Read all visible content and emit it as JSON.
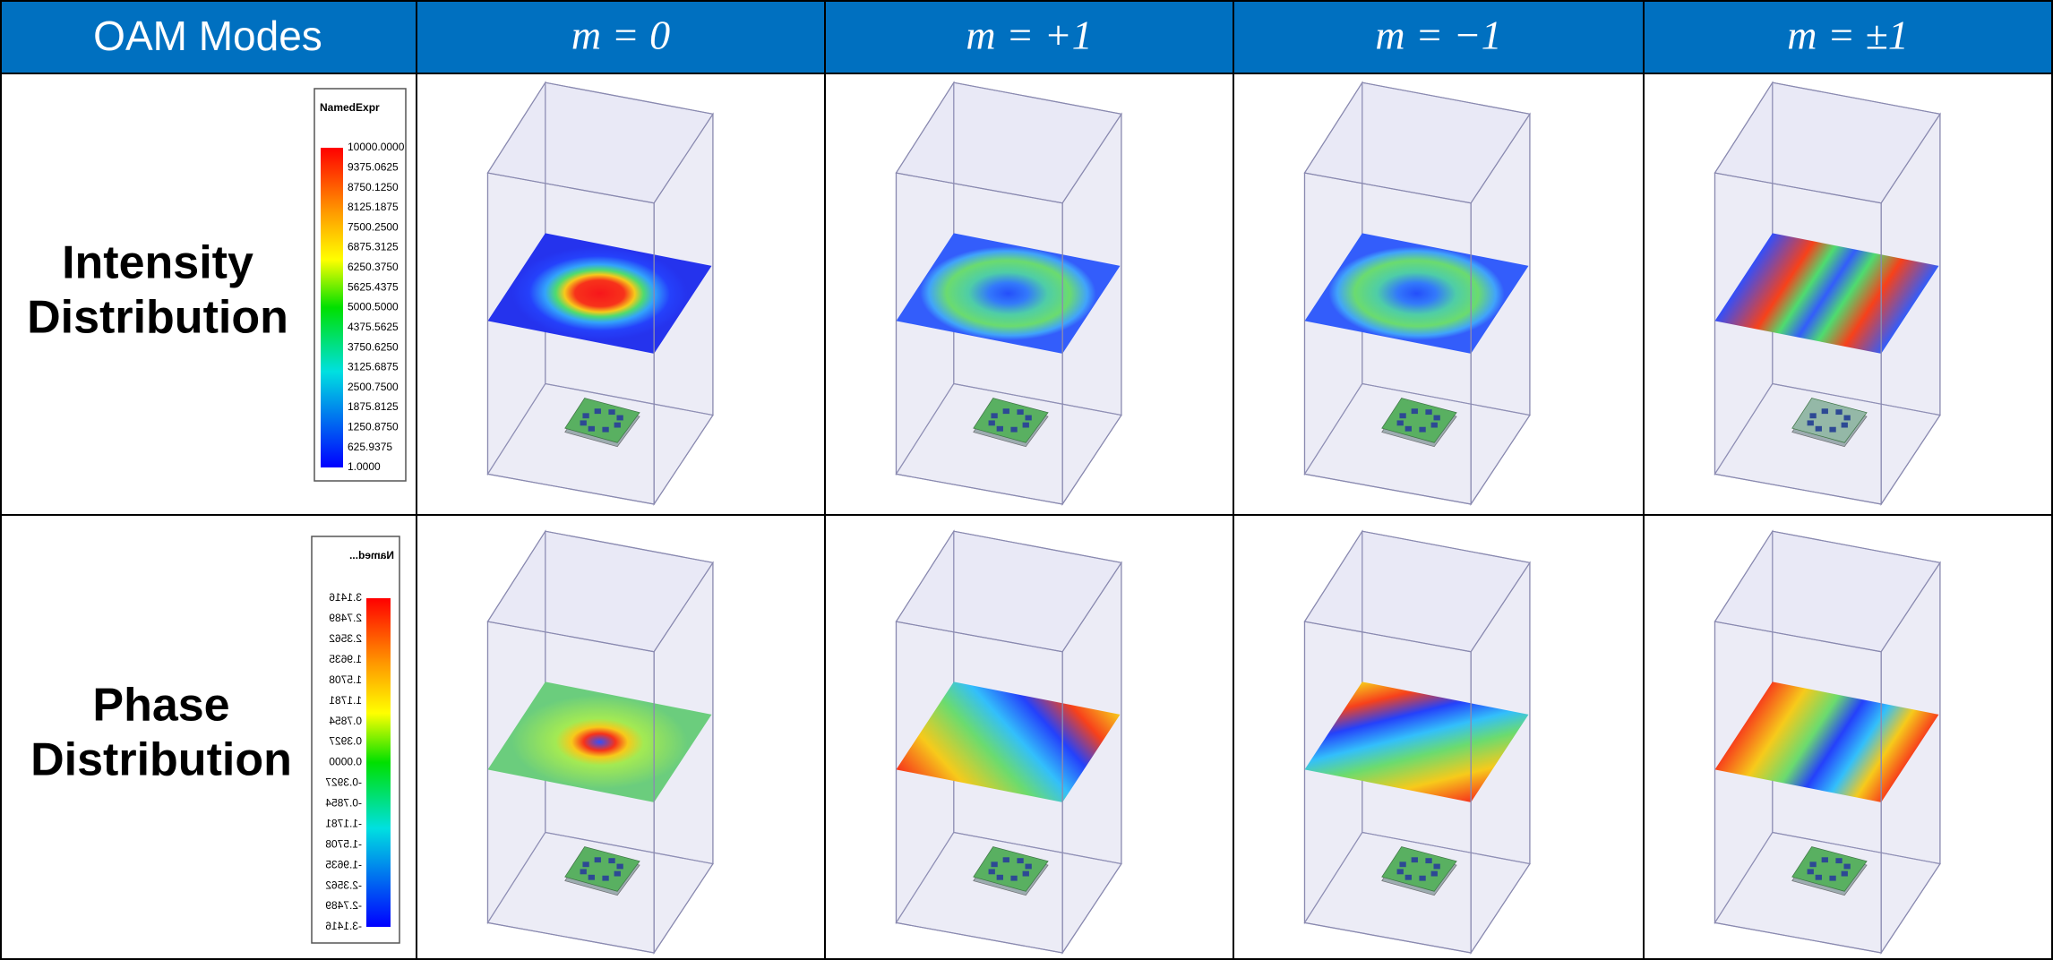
{
  "header": {
    "columns": [
      "OAM Modes",
      "m = 0",
      "m = +1",
      "m = −1",
      "m = ±1"
    ]
  },
  "rows": [
    {
      "label": [
        "Intensity",
        "Distribution"
      ],
      "legend": {
        "title": "NamedExpr",
        "ticks": [
          "10000.0000",
          "9375.0625",
          "8750.1250",
          "8125.1875",
          "7500.2500",
          "6875.3125",
          "6250.3750",
          "5625.4375",
          "5000.5000",
          "4375.5625",
          "3750.6250",
          "3125.6875",
          "2500.7500",
          "1875.8125",
          "1250.8750",
          "625.9375",
          "1.0000"
        ]
      }
    },
    {
      "label": [
        "Phase",
        "Distribution"
      ],
      "legend": {
        "title": "Named...",
        "ticks": [
          "3.1416",
          "2.7489",
          "2.3562",
          "1.9635",
          "1.5708",
          "1.1781",
          "0.7854",
          "0.3927",
          "0.0000",
          "-0.3927",
          "-0.7854",
          "-1.1781",
          "-1.5708",
          "-1.9635",
          "-2.3562",
          "-2.7489",
          "-3.1416"
        ]
      }
    }
  ]
}
